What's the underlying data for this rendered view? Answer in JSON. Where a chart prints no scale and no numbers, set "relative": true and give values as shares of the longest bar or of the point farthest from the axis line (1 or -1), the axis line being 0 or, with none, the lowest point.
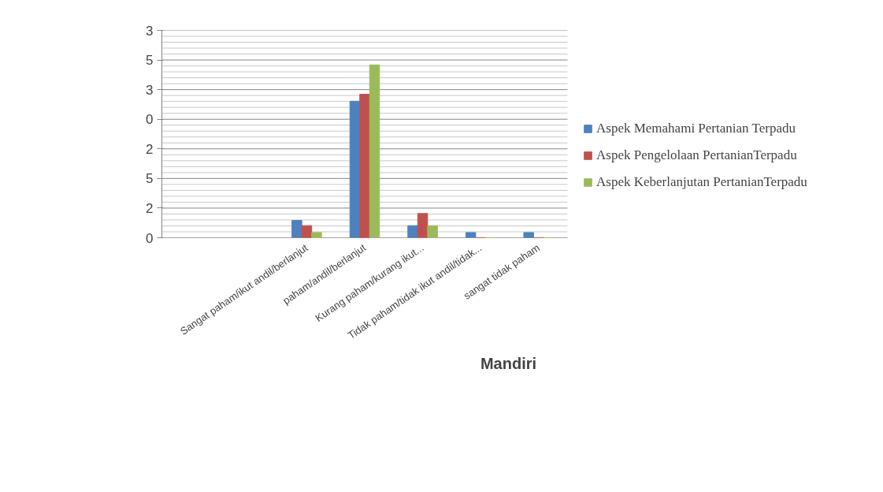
{
  "chart_data": {
    "type": "bar",
    "title": "Mandiri",
    "relative": true,
    "categories": [
      null,
      null,
      "Sangat paham/ikut andil/berlanjut",
      "paham/andil/berlanjut",
      "Kurang paham/kurang ikut...",
      "Tidak paham/tidak ikut andil/tidak...",
      "sangat tidak paham"
    ],
    "series": [
      {
        "name": "Aspek Memahami Pertanian Terpadu",
        "color": "#4f81bd",
        "values": [
          null,
          null,
          0.1,
          0.79,
          0.07,
          0.03,
          0.03
        ]
      },
      {
        "name": "Aspek Pengelolaan PertanianTerpadu",
        "color": "#c0504d",
        "values": [
          null,
          null,
          0.07,
          0.83,
          0.14,
          0,
          0
        ]
      },
      {
        "name": "Aspek Keberlanjutan PertanianTerpadu",
        "color": "#9bbb59",
        "values": [
          null,
          null,
          0.03,
          1,
          0.07,
          0,
          0
        ]
      }
    ],
    "annotations": [
      "0",
      "2",
      "5",
      "2",
      "0",
      "3",
      "5",
      "3"
    ],
    "grid": "y",
    "legend": "right"
  }
}
